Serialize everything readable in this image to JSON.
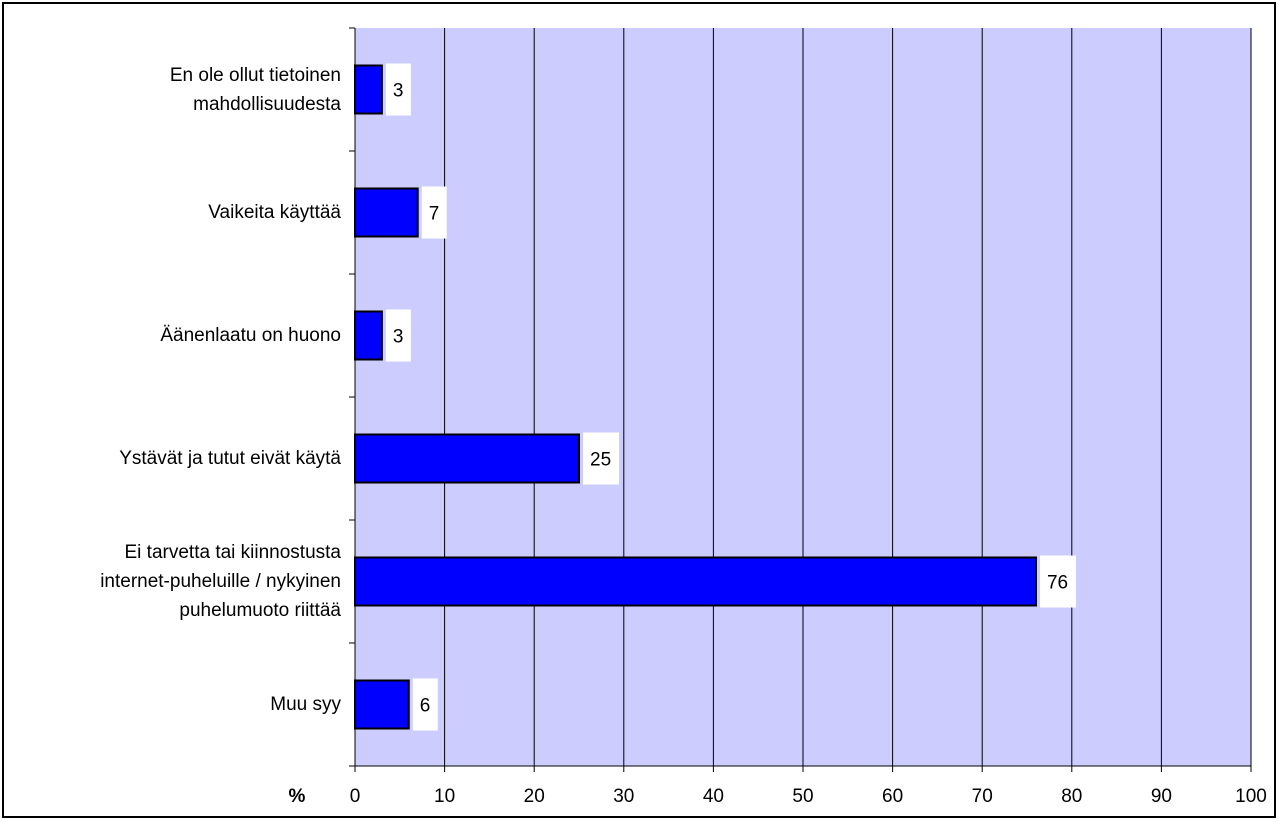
{
  "chart_data": {
    "type": "bar",
    "orientation": "horizontal",
    "categories": [
      "En ole ollut tietoinen\nmahdollisuudesta",
      "Vaikeita käyttää",
      "Äänenlaatu on huono",
      "Ystävät ja tutut eivät käytä",
      "Ei tarvetta tai kiinnostusta\ninternet-puheluille / nykyinen\npuhelumuoto riittää",
      "Muu syy"
    ],
    "values": [
      3,
      7,
      3,
      25,
      76,
      6
    ],
    "data_labels": [
      "3",
      "7",
      "3",
      "25",
      "76",
      "6"
    ],
    "xlabel": "%",
    "xlim": [
      0,
      100
    ],
    "xticks": [
      0,
      10,
      20,
      30,
      40,
      50,
      60,
      70,
      80,
      90,
      100
    ],
    "xtick_labels": [
      "0",
      "10",
      "20",
      "30",
      "40",
      "50",
      "60",
      "70",
      "80",
      "90",
      "100"
    ],
    "grid": "vertical",
    "legend": "none",
    "colors": {
      "plot_background": "#ccccff",
      "bar_fill": "#0000ff",
      "bar_stroke": "#000000",
      "gridline": "#000000",
      "label_background": "#ffffff"
    }
  }
}
